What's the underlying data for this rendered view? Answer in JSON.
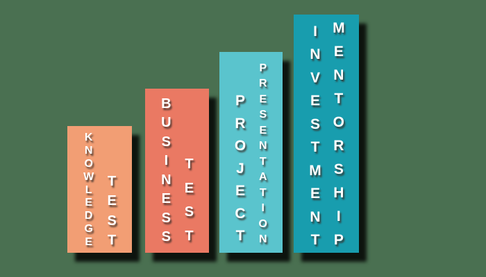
{
  "background_color": "#4A7051",
  "text_color": "#FFFFFF",
  "chart_data": {
    "type": "bar",
    "title": "",
    "categories": [
      "Knowledge Test",
      "Business Test",
      "Project Presentation",
      "Investment Mentorship"
    ],
    "values": [
      183,
      237,
      290,
      344
    ],
    "value_unit": "bar height in px (no numeric axis shown)",
    "orientation": "vertical-ascending",
    "bar_colors": [
      "#F29E74",
      "#EA7963",
      "#5AC4CD",
      "#189DAE"
    ],
    "xlabel": "",
    "ylabel": "",
    "legend": "none",
    "grid": false,
    "axes_shown": false,
    "annotations": "labels rendered as stacked vertical letters inside each bar, white text with dark drop shadow; bars cast solid black drop shadows down-right"
  },
  "bars": [
    {
      "id": "knowledge-test",
      "word1": "KNOWLEDGE",
      "word2": "TEST",
      "color": "#F29E74"
    },
    {
      "id": "business-test",
      "word1": "BUSINESS",
      "word2": "TEST",
      "color": "#EA7963"
    },
    {
      "id": "project-presentation",
      "word1": "PROJECT",
      "word2": "PRESENTATION",
      "color": "#5AC4CD"
    },
    {
      "id": "investment-mentorship",
      "word1": "INVESTMENT",
      "word2": "MENTORSHIP",
      "color": "#189DAE"
    }
  ]
}
